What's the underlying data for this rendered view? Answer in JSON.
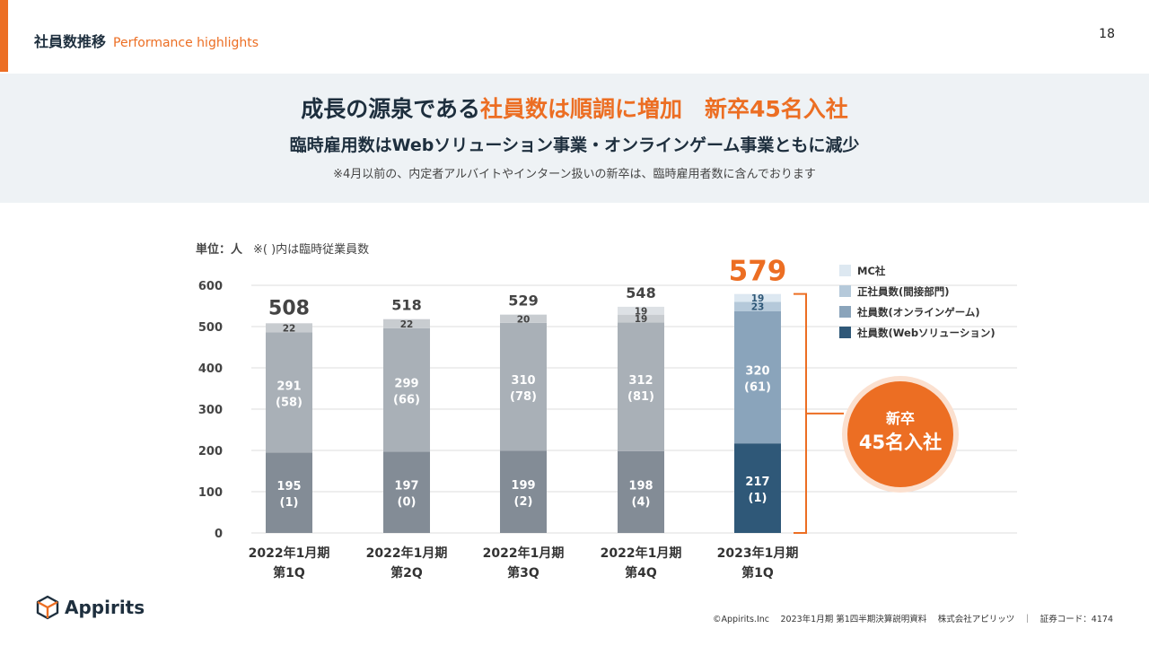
{
  "header": {
    "title": "社員数推移",
    "subtitle": "Performance highlights",
    "page_number": "18"
  },
  "banner": {
    "headline_pre": "成長の源泉である",
    "headline_highlight": "社員数は順調に増加　新卒45名入社",
    "subheadline": "臨時雇用数はWebソリューション事業・オンラインゲーム事業ともに減少",
    "note": "※4月以前の、内定者アルバイトやインターン扱いの新卒は、臨時雇用者数に含んでおります"
  },
  "unit_label": "単位：人",
  "unit_note": "※( )内は臨時従業員数",
  "bubble": {
    "line1": "新卒",
    "line2": "45名入社"
  },
  "colors": {
    "web_gray": "#838c96",
    "web_latest": "#2f5878",
    "game_gray": "#a9b0b7",
    "game_latest": "#8aa4bb",
    "indirect_gray": "#c8ccd0",
    "indirect_latest": "#b5c9da",
    "mc_gray": "#dde1e5",
    "mc_latest": "#dde8f1",
    "accent": "#ec6e23",
    "brand": "#1e2f3e"
  },
  "chart_data": {
    "type": "bar",
    "stacked": true,
    "categories": [
      [
        "2022年1月期",
        "第1Q"
      ],
      [
        "2022年1月期",
        "第2Q"
      ],
      [
        "2022年1月期",
        "第3Q"
      ],
      [
        "2022年1月期",
        "第4Q"
      ],
      [
        "2023年1月期",
        "第1Q"
      ]
    ],
    "ylim": [
      0,
      600
    ],
    "yticks": [
      0,
      100,
      200,
      300,
      400,
      500,
      600
    ],
    "grid": true,
    "legend_position": "top-right",
    "series": [
      {
        "name": "社員数(Webソリューション)",
        "values": [
          195,
          197,
          199,
          198,
          217
        ],
        "labels": [
          "195\n(1)",
          "197\n(0)",
          "199\n(2)",
          "198\n(4)",
          "217\n(1)"
        ]
      },
      {
        "name": "社員数(オンラインゲーム)",
        "values": [
          291,
          299,
          310,
          312,
          320
        ],
        "labels": [
          "291\n(58)",
          "299\n(66)",
          "310\n(78)",
          "312\n(81)",
          "320\n(61)"
        ]
      },
      {
        "name": "正社員数(間接部門)",
        "values": [
          22,
          22,
          20,
          19,
          23
        ],
        "labels": [
          "22",
          "22",
          "20",
          "19",
          "23"
        ]
      },
      {
        "name": "MC社",
        "values": [
          0,
          0,
          0,
          19,
          19
        ],
        "labels": [
          "",
          "",
          "",
          "19",
          "19"
        ]
      }
    ],
    "totals": [
      508,
      518,
      529,
      548,
      579
    ]
  },
  "footer": {
    "logo_text": "Appirits",
    "text": "©Appirits.Inc　 2023年1月期 第1四半期決算説明資料　 株式会社アピリッツ　｜　証券コード：4174"
  }
}
